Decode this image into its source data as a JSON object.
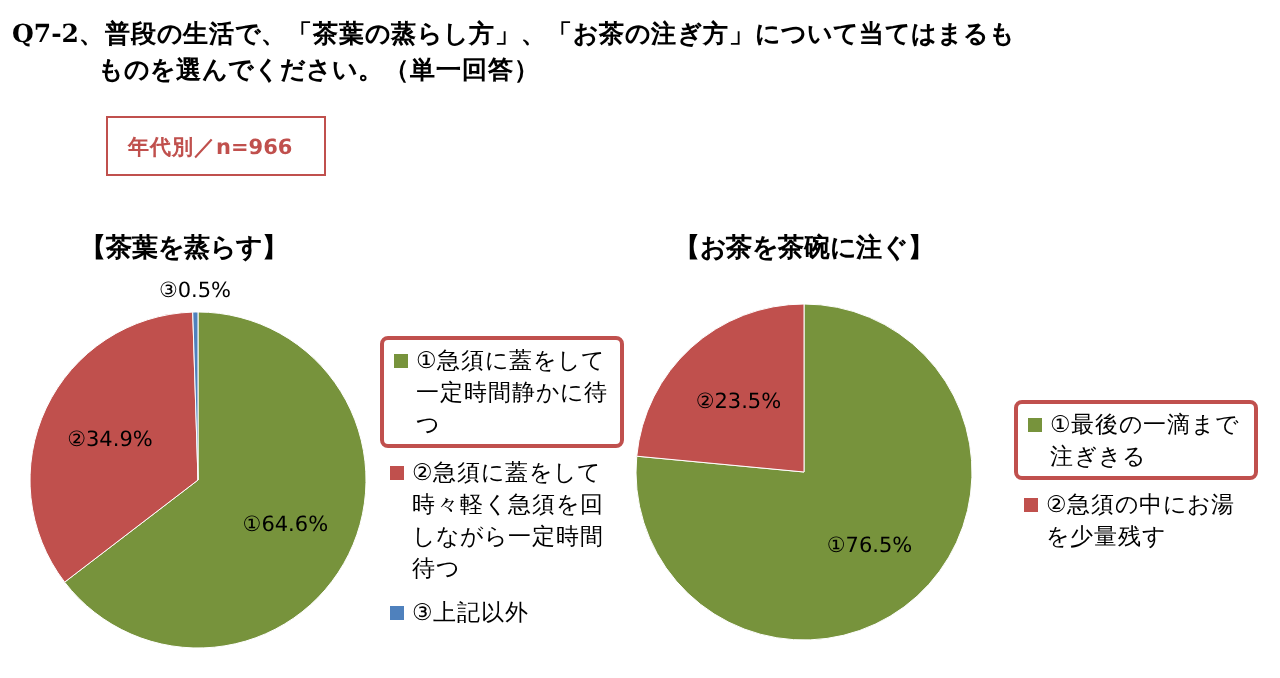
{
  "chart_data": [
    {
      "type": "pie",
      "title": "【茶葉を蒸らす】",
      "categories": [
        "①急須に蓋をして一定時間静かに待つ",
        "②急須に蓋をして時々軽く急須を回しながら一定時間待つ",
        "③上記以外"
      ],
      "values": [
        64.6,
        34.9,
        0.5
      ],
      "colors": [
        "#77933c",
        "#c0504d",
        "#4f81bd"
      ],
      "value_labels": [
        "①64.6%",
        "②34.9%",
        "③0.5%"
      ],
      "legend": "right",
      "annotations": [
        "Q7-2、普段の生活で、「茶葉の蒸らし方」、「お茶の注ぎ方」について当てはまるもものを選んでください。（単一回答）",
        "年代別／n=966"
      ]
    },
    {
      "type": "pie",
      "title": "【お茶を茶碗に注ぐ】",
      "categories": [
        "①最後の一滴まで注ぎきる",
        "②急須の中にお湯を少量残す"
      ],
      "values": [
        76.5,
        23.5
      ],
      "colors": [
        "#77933c",
        "#c0504d"
      ],
      "value_labels": [
        "①76.5%",
        "②23.5%"
      ],
      "legend": "right"
    }
  ]
}
